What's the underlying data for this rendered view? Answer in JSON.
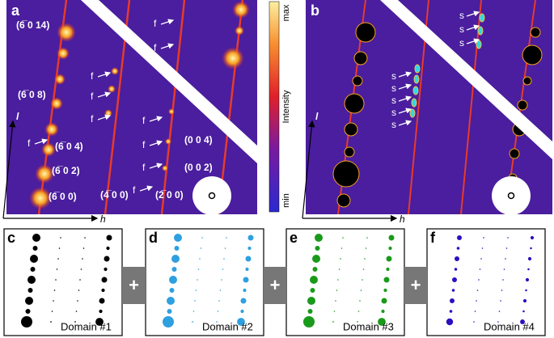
{
  "panel_a": {
    "label": "a",
    "reflections": [
      "(6̅ 0 14)",
      "(6̅ 0 8)",
      "(6̅ 0 4)",
      "(6̅ 0 2)",
      "(6̅ 0 0)",
      "(4̅ 0 0)",
      "(2̅ 0 0)",
      "(0 0 4)",
      "(0 0 2)"
    ],
    "f_labels": [
      "f",
      "f",
      "f",
      "f",
      "f",
      "f",
      "f",
      "f",
      "f",
      "f"
    ],
    "axis_l": "l",
    "axis_h": "h"
  },
  "colorbar": {
    "title": "Intensity",
    "max": "max",
    "min": "min"
  },
  "panel_b": {
    "label": "b",
    "s_labels": [
      "s",
      "s",
      "s",
      "s",
      "s",
      "s",
      "s",
      "s"
    ],
    "axis_l": "l",
    "axis_h": "h"
  },
  "domains": [
    {
      "label": "c",
      "name": "Domain #1"
    },
    {
      "label": "d",
      "name": "Domain #2"
    },
    {
      "label": "e",
      "name": "Domain #3"
    },
    {
      "label": "f",
      "name": "Domain #4"
    }
  ],
  "plus_signs": [
    "+",
    "+",
    "+"
  ]
}
